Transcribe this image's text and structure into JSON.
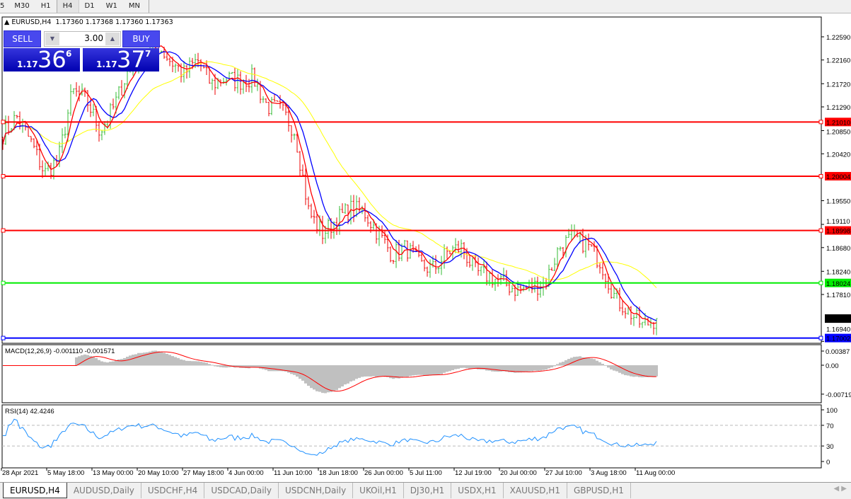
{
  "timeframes": [
    {
      "label": "5"
    },
    {
      "label": "M30"
    },
    {
      "label": "H1"
    },
    {
      "label": "H4",
      "active": true
    },
    {
      "label": "D1"
    },
    {
      "label": "W1"
    },
    {
      "label": "MN"
    }
  ],
  "header": {
    "symbol": "EURUSD,H4",
    "ohlc": "1.17360 1.17368 1.17360 1.17363"
  },
  "trade": {
    "sell_label": "SELL",
    "buy_label": "BUY",
    "volume": "3.00",
    "sell_prefix": "1.17",
    "sell_big": "36",
    "sell_sup": "6",
    "buy_prefix": "1.17",
    "buy_big": "37",
    "buy_sup": "7"
  },
  "price_axis": {
    "ticks": [
      "1.22590",
      "1.22160",
      "1.21720",
      "1.21290",
      "1.20850",
      "1.20420",
      "1.19550",
      "1.19110",
      "1.18680",
      "1.18240",
      "1.17810",
      "1.16940"
    ],
    "current": "1.17363"
  },
  "levels": [
    {
      "price": "1.21010",
      "color": "#ff0000"
    },
    {
      "price": "1.20004",
      "color": "#ff0000"
    },
    {
      "price": "1.18998",
      "color": "#ff0000"
    },
    {
      "price": "1.18024",
      "color": "#00ee00"
    },
    {
      "price": "1.17002",
      "color": "#0000ff"
    }
  ],
  "macd": {
    "label": "MACD(12,26,9) -0.001110 -0.001571",
    "ticks": [
      "0.00387",
      "0.00",
      "-0.00719"
    ]
  },
  "rsi": {
    "label": "RSI(14) 42.4246",
    "ticks": [
      "100",
      "70",
      "30",
      "0"
    ]
  },
  "time_axis": [
    "28 Apr 2021",
    "5 May 18:00",
    "13 May 00:00",
    "20 May 10:00",
    "27 May 18:00",
    "4 Jun 00:00",
    "11 Jun 10:00",
    "18 Jun 18:00",
    "26 Jun 00:00",
    "5 Jul 11:00",
    "12 Jul 19:00",
    "20 Jul 00:00",
    "27 Jul 10:00",
    "3 Aug 18:00",
    "11 Aug 00:00"
  ],
  "tabs": [
    {
      "label": "EURUSD,H4",
      "active": true
    },
    {
      "label": "AUDUSD,Daily"
    },
    {
      "label": "USDCHF,H4"
    },
    {
      "label": "USDCAD,Daily"
    },
    {
      "label": "USDCNH,Daily"
    },
    {
      "label": "UKOil,H1"
    },
    {
      "label": "DJ30,H1"
    },
    {
      "label": "USDX,H1"
    },
    {
      "label": "XAUUSD,H1"
    },
    {
      "label": "GBPUSD,H1"
    }
  ],
  "chart_data": {
    "type": "ohlc-bar",
    "symbol": "EURUSD",
    "timeframe": "H4",
    "ylim": [
      1.1694,
      1.2259
    ],
    "close_path": [
      1.2078,
      1.2111,
      1.2065,
      1.2006,
      1.2032,
      1.2157,
      1.2143,
      1.2084,
      1.213,
      1.2196,
      1.2222,
      1.2248,
      1.2216,
      1.219,
      1.2216,
      1.217,
      1.2183,
      1.2176,
      1.2183,
      1.213,
      1.2124,
      1.2084,
      1.1933,
      1.1894,
      1.192,
      1.194,
      1.1933,
      1.1894,
      1.1855,
      1.1868,
      1.1835,
      1.1828,
      1.1861,
      1.1868,
      1.1822,
      1.1815,
      1.1802,
      1.1789,
      1.1795,
      1.1802,
      1.1868,
      1.1887,
      1.1874,
      1.1841,
      1.1776,
      1.175,
      1.1723,
      1.17363
    ],
    "colors": {
      "up": "#33bb33",
      "down": "#ee0000",
      "ma_fast": "#ff0000",
      "ma_mid": "#0000ff",
      "ma_slow": "#ffff00",
      "macd_hist": "#c0c0c0",
      "macd_signal": "#ff0000",
      "rsi": "#1e90ff"
    }
  }
}
